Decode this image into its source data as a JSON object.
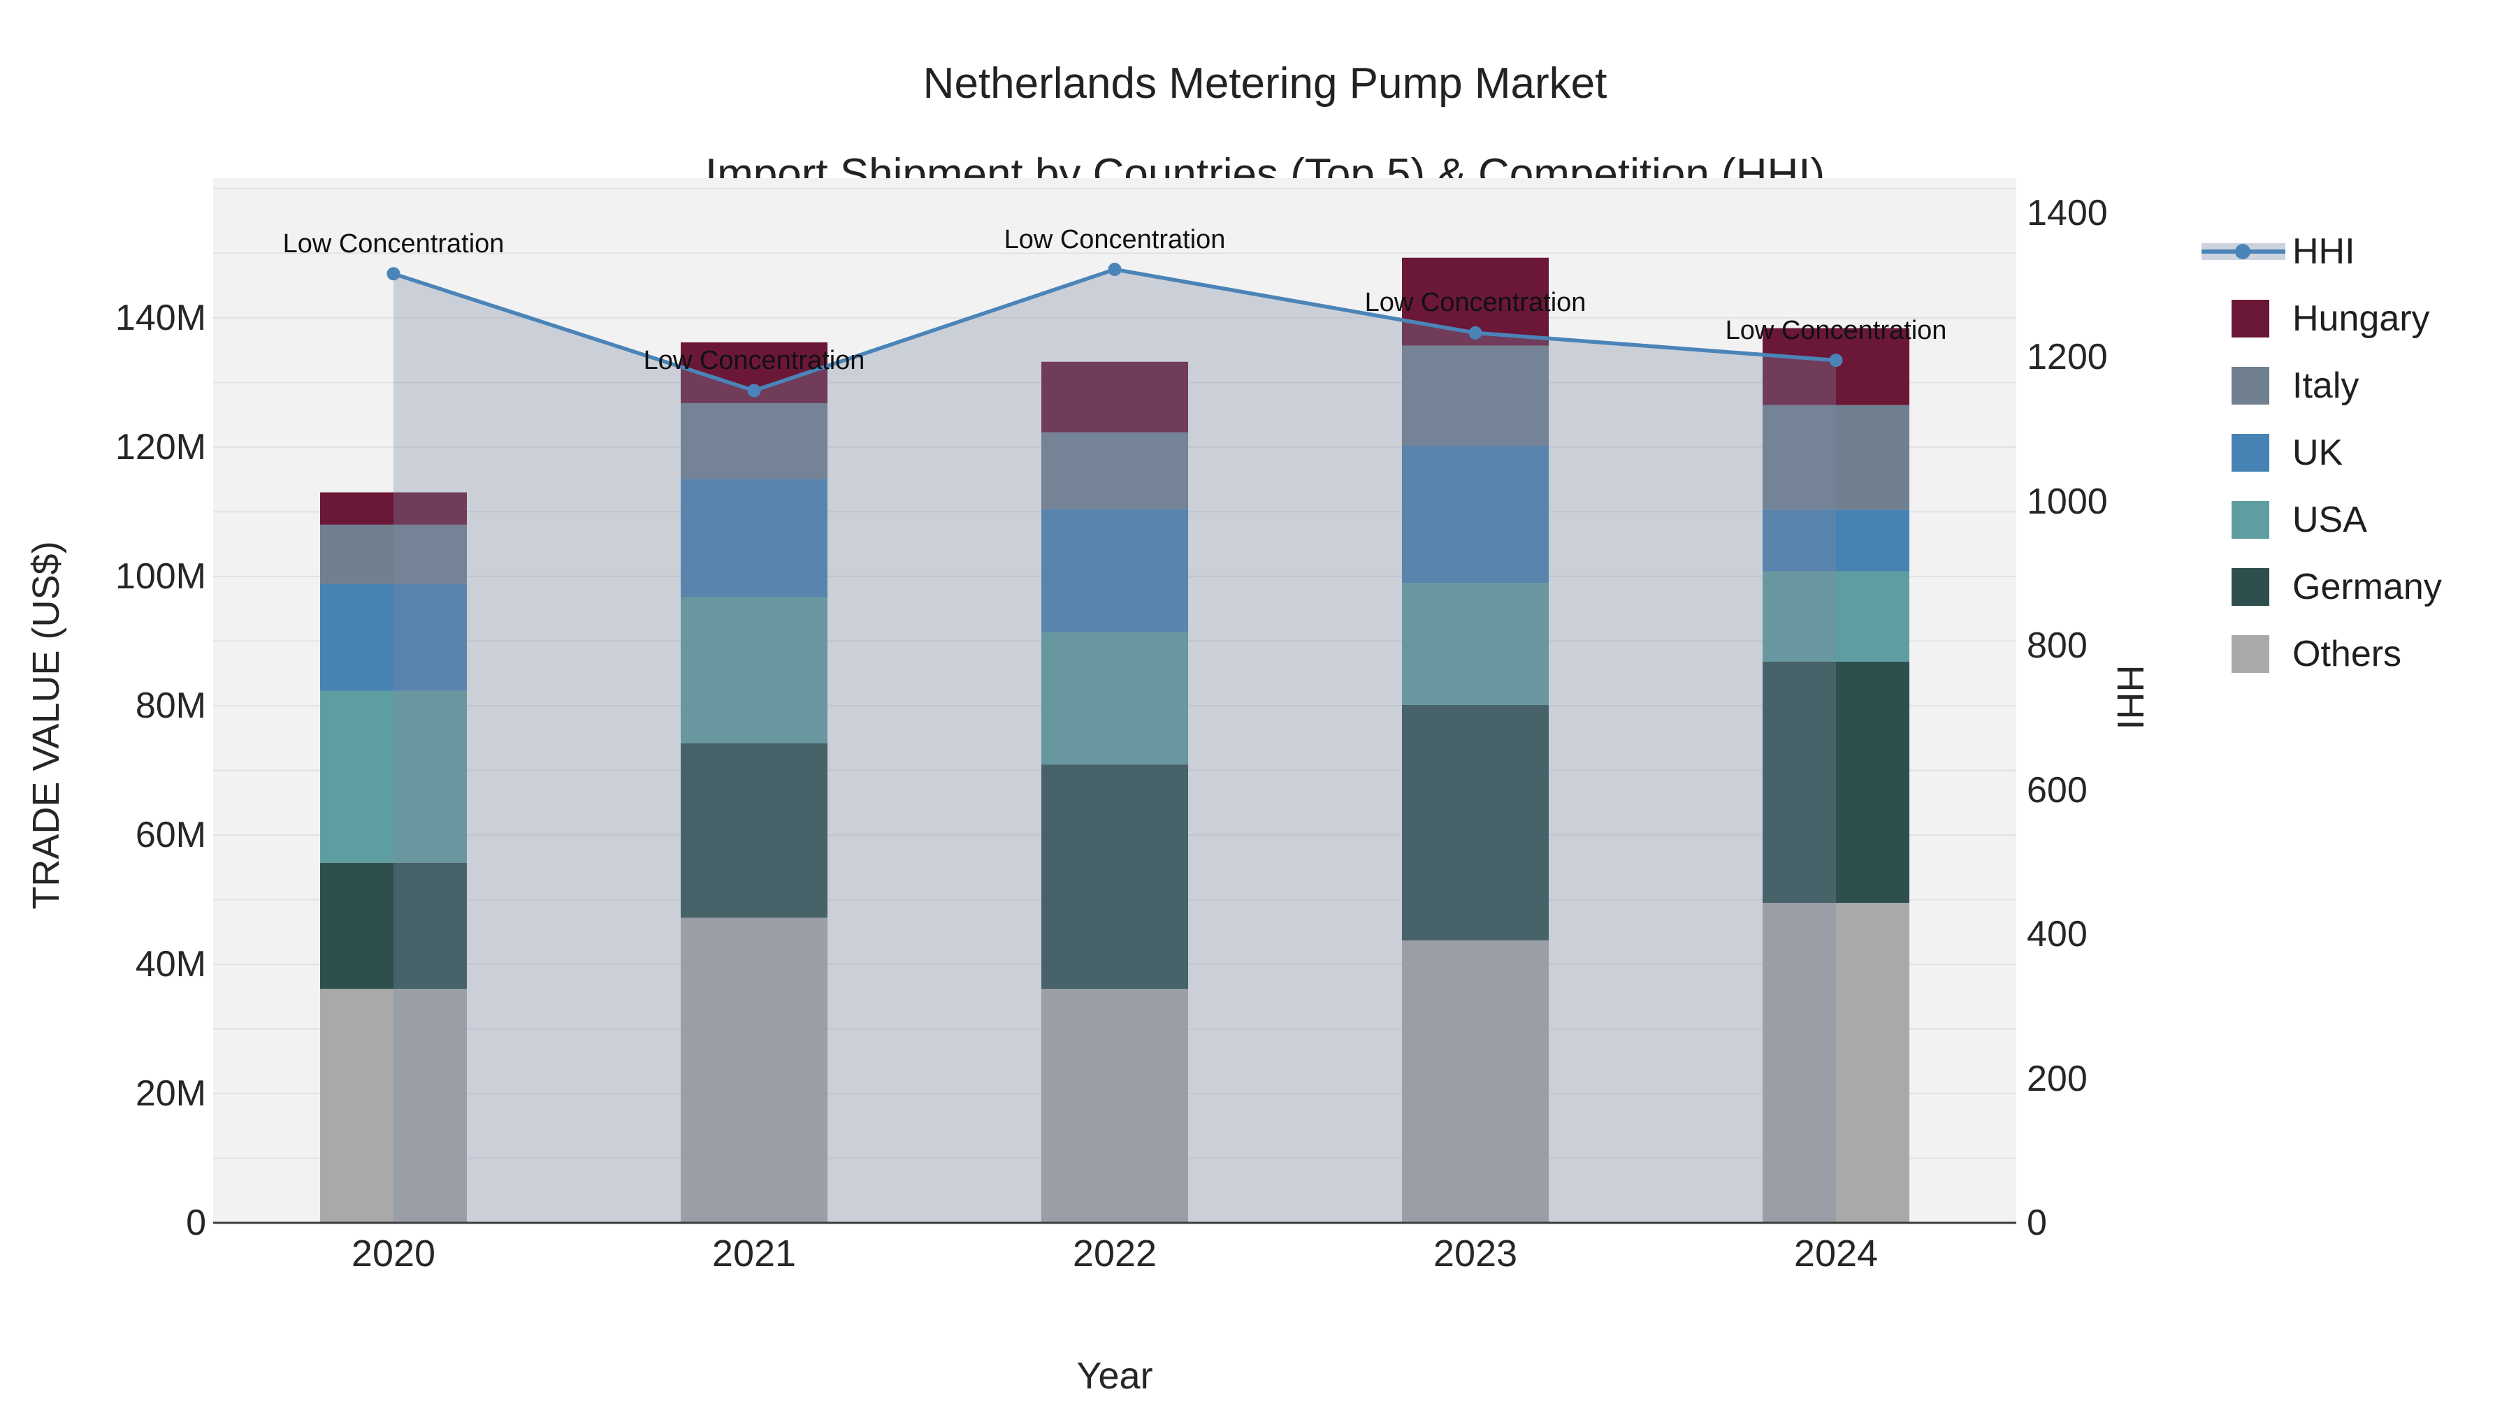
{
  "title": {
    "line1": "Netherlands Metering Pump Market",
    "line2": "Import Shipment by Countries (Top 5) & Competition (HHI)"
  },
  "axes": {
    "left": {
      "title": "TRADE VALUE (US$)",
      "tick_labels": [
        "0",
        "20M",
        "40M",
        "60M",
        "80M",
        "100M",
        "120M",
        "140M"
      ],
      "tick_values": [
        0,
        20,
        40,
        60,
        80,
        100,
        120,
        140
      ],
      "max_value": 161.6
    },
    "right": {
      "title": "HHI",
      "tick_labels": [
        "0",
        "200",
        "400",
        "600",
        "800",
        "1000",
        "1200",
        "1400"
      ],
      "tick_values": [
        0,
        200,
        400,
        600,
        800,
        1000,
        1200,
        1400
      ],
      "max_value": 1448.5
    },
    "x": {
      "title": "Year",
      "categories": [
        "2020",
        "2021",
        "2022",
        "2023",
        "2024"
      ]
    }
  },
  "legend": [
    {
      "label": "HHI",
      "type": "line",
      "color": "#4A84B8"
    },
    {
      "label": "Hungary",
      "type": "swatch",
      "color": "#6B1738"
    },
    {
      "label": "Italy",
      "type": "swatch",
      "color": "#708090"
    },
    {
      "label": "UK",
      "type": "swatch",
      "color": "#4682B4"
    },
    {
      "label": "USA",
      "type": "swatch",
      "color": "#5F9EA0"
    },
    {
      "label": "Germany",
      "type": "swatch",
      "color": "#2F4F4F"
    },
    {
      "label": "Others",
      "type": "swatch",
      "color": "#A9A9A9"
    }
  ],
  "annotation_text": "Low Concentration",
  "colors": {
    "plot_bg": "#F2F2F3",
    "grid": "#E1E2E6",
    "axis_line": "#3C3C3C",
    "hhi_line": "#4A84B8",
    "hhi_area": "rgba(125,138,160,0.33)"
  },
  "chart_data": {
    "type": "bar+line",
    "title": "Netherlands Metering Pump Market — Import Shipment by Countries (Top 5) & Competition (HHI)",
    "categories": [
      "2020",
      "2021",
      "2022",
      "2023",
      "2024"
    ],
    "bar_value_unit": "million US$ trade value",
    "stack_order_bottom_to_top": [
      "Others",
      "Germany",
      "USA",
      "UK",
      "Italy",
      "Hungary"
    ],
    "series": [
      {
        "name": "Others",
        "color": "#A9A9A9",
        "values": [
          36.2,
          47.2,
          36.2,
          43.7,
          49.5
        ]
      },
      {
        "name": "Germany",
        "color": "#2F4F4F",
        "values": [
          19.5,
          27.0,
          34.7,
          36.4,
          37.3
        ]
      },
      {
        "name": "USA",
        "color": "#5F9EA0",
        "values": [
          26.6,
          22.6,
          20.5,
          18.9,
          14.0
        ]
      },
      {
        "name": "UK",
        "color": "#4682B4",
        "values": [
          16.5,
          18.3,
          19.0,
          21.2,
          9.5
        ]
      },
      {
        "name": "Italy",
        "color": "#708090",
        "values": [
          9.2,
          11.7,
          11.9,
          15.5,
          16.2
        ]
      },
      {
        "name": "Hungary",
        "color": "#6B1738",
        "values": [
          5.0,
          9.4,
          10.9,
          13.6,
          11.9
        ]
      }
    ],
    "bar_totals": [
      113.0,
      136.2,
      133.2,
      149.3,
      138.4
    ],
    "line_series": {
      "name": "HHI",
      "axis": "right",
      "color": "#4A84B8",
      "values": [
        1316,
        1154,
        1322,
        1234,
        1196
      ],
      "point_annotations": [
        "Low Concentration",
        "Low Concentration",
        "Low Concentration",
        "Low Concentration",
        "Low Concentration"
      ]
    },
    "ylim_left": [
      0,
      161.6
    ],
    "ylim_right": [
      0,
      1448.5
    ],
    "grid": "horizontal gridlines every 10M",
    "legend_position": "right"
  }
}
